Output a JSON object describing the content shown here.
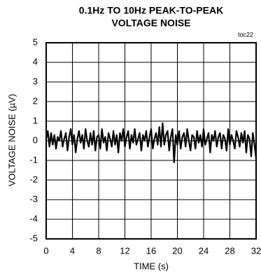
{
  "chart_data": {
    "type": "line",
    "title_lines": [
      "0.1Hz TO 10Hz PEAK-TO-PEAK",
      "VOLTAGE NOISE"
    ],
    "annotation": "toc22",
    "x_label": "TIME (s)",
    "y_label": "VOLTAGE NOISE (µV)",
    "xlim": [
      0,
      32
    ],
    "xticks": [
      0,
      4,
      8,
      12,
      16,
      20,
      24,
      28,
      32
    ],
    "ylim": [
      -5,
      5
    ],
    "yticks": [
      -5,
      -4,
      -3,
      -2,
      -1,
      0,
      1,
      2,
      3,
      4,
      5
    ],
    "grid": true,
    "x": [
      0,
      0.25,
      0.5,
      0.75,
      1,
      1.25,
      1.5,
      1.75,
      2,
      2.25,
      2.5,
      2.75,
      3,
      3.25,
      3.5,
      3.75,
      4,
      4.25,
      4.5,
      4.75,
      5,
      5.25,
      5.5,
      5.75,
      6,
      6.25,
      6.5,
      6.75,
      7,
      7.25,
      7.5,
      7.75,
      8,
      8.25,
      8.5,
      8.75,
      9,
      9.25,
      9.5,
      9.75,
      10,
      10.25,
      10.5,
      10.75,
      11,
      11.25,
      11.5,
      11.75,
      12,
      12.25,
      12.5,
      12.75,
      13,
      13.25,
      13.5,
      13.75,
      14,
      14.25,
      14.5,
      14.75,
      15,
      15.25,
      15.5,
      15.75,
      16,
      16.25,
      16.5,
      16.75,
      17,
      17.25,
      17.5,
      17.75,
      18,
      18.25,
      18.5,
      18.75,
      19,
      19.25,
      19.5,
      19.75,
      20,
      20.25,
      20.5,
      20.75,
      21,
      21.25,
      21.5,
      21.75,
      22,
      22.25,
      22.5,
      22.75,
      23,
      23.25,
      23.5,
      23.75,
      24,
      24.25,
      24.5,
      24.75,
      25,
      25.25,
      25.5,
      25.75,
      26,
      26.25,
      26.5,
      26.75,
      27,
      27.25,
      27.5,
      27.75,
      28,
      28.25,
      28.5,
      28.75,
      29,
      29.25,
      29.5,
      29.75,
      30,
      30.25,
      30.5,
      30.75,
      31,
      31.25,
      31.5,
      31.75,
      32
    ],
    "series": [
      {
        "color": "#000000",
        "values": [
          0.1,
          0.5,
          -0.3,
          0.4,
          -0.2,
          0.3,
          -0.4,
          0.2,
          0.0,
          0.5,
          -0.3,
          0.1,
          0.4,
          -0.5,
          0.2,
          0.6,
          -0.2,
          0.3,
          -0.6,
          0.1,
          0.5,
          -0.1,
          0.3,
          -0.4,
          0.6,
          0.0,
          -0.3,
          0.4,
          -0.2,
          0.5,
          -0.5,
          0.2,
          0.3,
          -0.4,
          0.6,
          -0.1,
          0.2,
          -0.5,
          0.4,
          0.1,
          -0.3,
          0.5,
          -0.2,
          0.3,
          -0.6,
          0.4,
          0.0,
          0.6,
          -0.3,
          0.2,
          0.5,
          -0.4,
          0.3,
          -0.1,
          0.6,
          -0.2,
          0.1,
          0.4,
          -0.5,
          0.3,
          0.0,
          0.5,
          -0.3,
          0.2,
          0.6,
          -0.4,
          0.1,
          0.4,
          -0.2,
          0.7,
          -0.3,
          0.9,
          -0.2,
          0.3,
          0.5,
          -0.5,
          0.2,
          0.6,
          -1.1,
          0.3,
          -0.2,
          0.5,
          -0.4,
          0.2,
          0.4,
          -0.3,
          0.6,
          0.0,
          -0.5,
          0.3,
          0.2,
          -0.4,
          0.5,
          -0.1,
          0.3,
          -0.3,
          0.6,
          -0.2,
          0.1,
          0.4,
          -0.6,
          0.3,
          0.0,
          0.5,
          -0.3,
          0.2,
          0.4,
          -0.4,
          0.3,
          0.1,
          -0.5,
          0.6,
          -0.2,
          0.3,
          0.0,
          -0.4,
          0.5,
          0.2,
          -0.3,
          0.4,
          -0.1,
          0.5,
          -0.6,
          0.3,
          0.1,
          -0.8,
          0.4,
          -0.2,
          -0.9
        ]
      }
    ]
  }
}
